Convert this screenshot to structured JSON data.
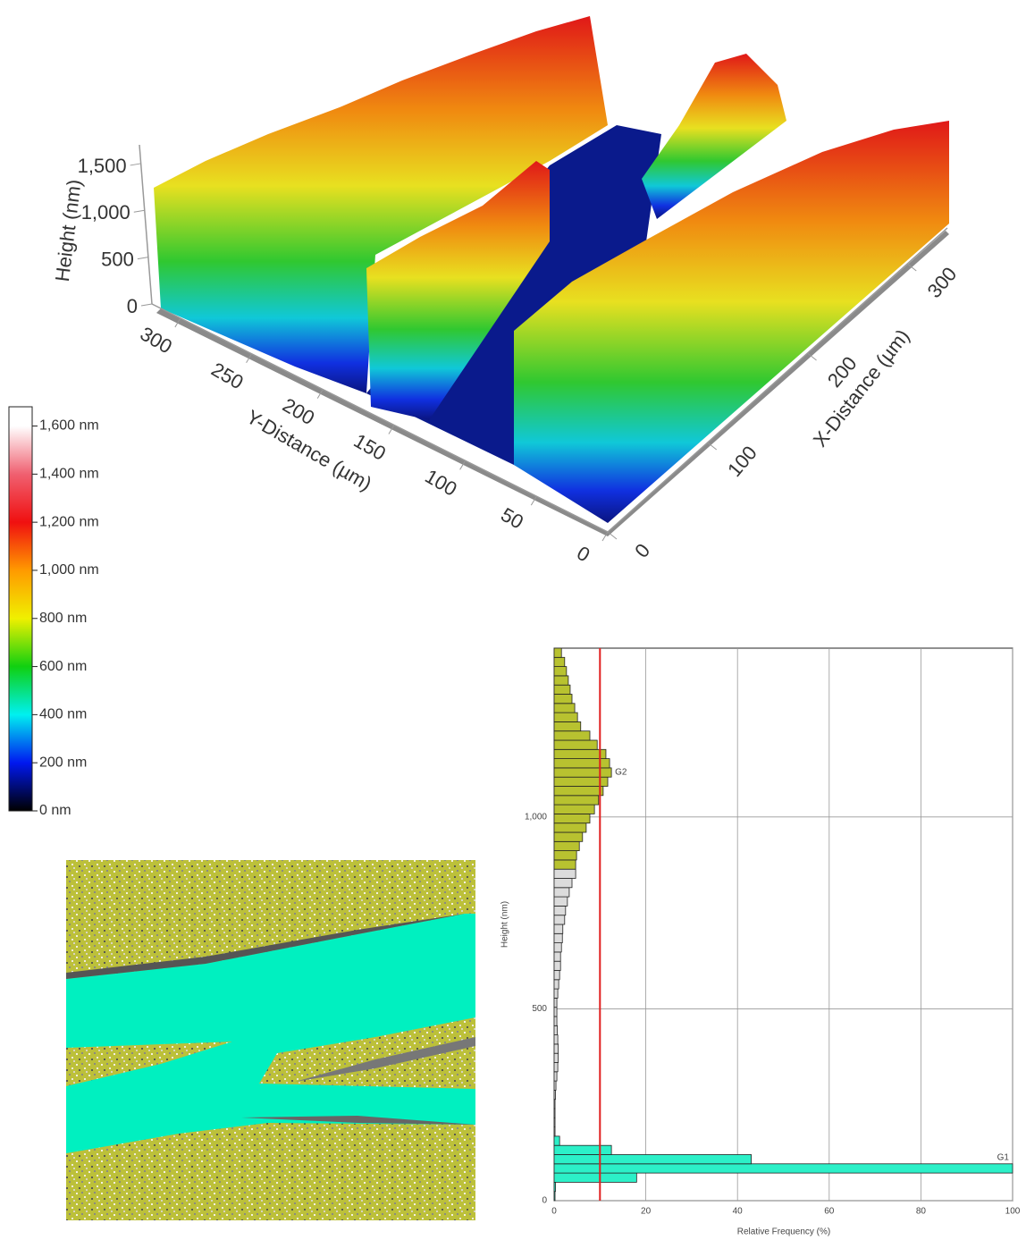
{
  "chart_data": [
    {
      "type": "surface3d",
      "xlabel": "X-Distance (µm)",
      "ylabel": "Y-Distance (µm)",
      "zlabel": "Height (nm)",
      "xlim": [
        0,
        340
      ],
      "ylim": [
        0,
        320
      ],
      "zlim": [
        0,
        1700
      ],
      "xticks": [
        0,
        100,
        200,
        300
      ],
      "yticks": [
        0,
        50,
        100,
        150,
        200,
        250,
        300
      ],
      "zticks": [
        0,
        500,
        {
          "value": 1000,
          "label": "1,000"
        },
        {
          "value": 1500,
          "label": "1,500"
        }
      ]
    },
    {
      "type": "colorbar",
      "clim": [
        0,
        1680
      ],
      "ticks": [
        {
          "value": 0,
          "label": "0 nm"
        },
        {
          "value": 200,
          "label": "200 nm"
        },
        {
          "value": 400,
          "label": "400 nm"
        },
        {
          "value": 600,
          "label": "600 nm"
        },
        {
          "value": 800,
          "label": "800 nm"
        },
        {
          "value": 1000,
          "label": "1,000 nm"
        },
        {
          "value": 1200,
          "label": "1,200 nm"
        },
        {
          "value": 1400,
          "label": "1,400 nm"
        },
        {
          "value": 1600,
          "label": "1,600 nm"
        }
      ],
      "colors": [
        "#000000",
        "#0018f0",
        "#00f0f0",
        "#10d010",
        "#f0f000",
        "#ff9a00",
        "#f01010",
        "#f06070",
        "#ffffff"
      ]
    },
    {
      "type": "histogram",
      "orientation": "horizontal",
      "xlabel": "Relative Frequency (%)",
      "ylabel": "Height (nm)",
      "xlim": [
        0,
        100
      ],
      "ylim": [
        0,
        1440
      ],
      "xticks": [
        0,
        20,
        40,
        60,
        80,
        100
      ],
      "yticks": [
        0,
        500,
        {
          "value": 1000,
          "label": "1,000"
        }
      ],
      "grid": true,
      "bins": [
        0,
        24,
        48,
        72,
        96,
        120,
        144,
        168,
        192,
        216,
        240,
        264,
        288,
        312,
        336,
        360,
        384,
        408,
        432,
        456,
        480,
        504,
        528,
        552,
        576,
        600,
        624,
        648,
        672,
        696,
        720,
        744,
        768,
        792,
        816,
        840,
        864,
        888,
        912,
        936,
        960,
        984,
        1008,
        1032,
        1056,
        1080,
        1104,
        1128,
        1152,
        1176,
        1200,
        1224,
        1248,
        1272,
        1296,
        1320,
        1344,
        1368,
        1392,
        1416,
        1440
      ],
      "series": [
        {
          "name": "G1",
          "color": "#2cf0c8",
          "values": [
            0.2,
            0.3,
            18,
            100,
            43,
            12.5,
            1.2,
            null,
            null,
            null,
            null,
            null,
            null,
            null,
            null,
            null,
            null,
            null,
            null,
            null,
            null,
            null,
            null,
            null,
            null,
            null,
            null,
            null,
            null,
            null,
            null,
            null,
            null,
            null,
            null,
            null,
            null,
            null,
            null,
            null,
            null,
            null,
            null,
            null,
            null,
            null,
            null,
            null,
            null,
            null,
            null,
            null,
            null,
            null,
            null,
            null,
            null,
            null,
            null,
            null
          ]
        },
        {
          "color": "#dcdcdc",
          "values": [
            null,
            null,
            null,
            null,
            null,
            null,
            null,
            0.2,
            0.2,
            0.2,
            0.2,
            0.3,
            0.4,
            0.6,
            0.8,
            0.9,
            0.9,
            0.8,
            0.7,
            0.6,
            0.6,
            0.6,
            0.8,
            1.0,
            1.2,
            1.4,
            1.4,
            1.6,
            1.8,
            1.9,
            2.3,
            2.5,
            2.9,
            3.3,
            3.9,
            4.7,
            null,
            null,
            null,
            null,
            null,
            null,
            null,
            null,
            null,
            null,
            null,
            null,
            null,
            null,
            null,
            null,
            null,
            null,
            null,
            null,
            null,
            null,
            null,
            null
          ]
        },
        {
          "name": "G2",
          "color": "#b8c230",
          "values": [
            null,
            null,
            null,
            null,
            null,
            null,
            null,
            null,
            null,
            null,
            null,
            null,
            null,
            null,
            null,
            null,
            null,
            null,
            null,
            null,
            null,
            null,
            null,
            null,
            null,
            null,
            null,
            null,
            null,
            null,
            null,
            null,
            null,
            null,
            null,
            null,
            4.7,
            4.9,
            5.5,
            6.2,
            7.0,
            7.8,
            8.8,
            9.7,
            10.7,
            11.7,
            12.5,
            12.1,
            11.3,
            9.4,
            7.8,
            5.8,
            5.1,
            4.5,
            3.9,
            3.5,
            3.1,
            2.7,
            2.3,
            1.6
          ]
        }
      ],
      "reference_line": {
        "x": 10,
        "color": "#e02020"
      }
    }
  ]
}
